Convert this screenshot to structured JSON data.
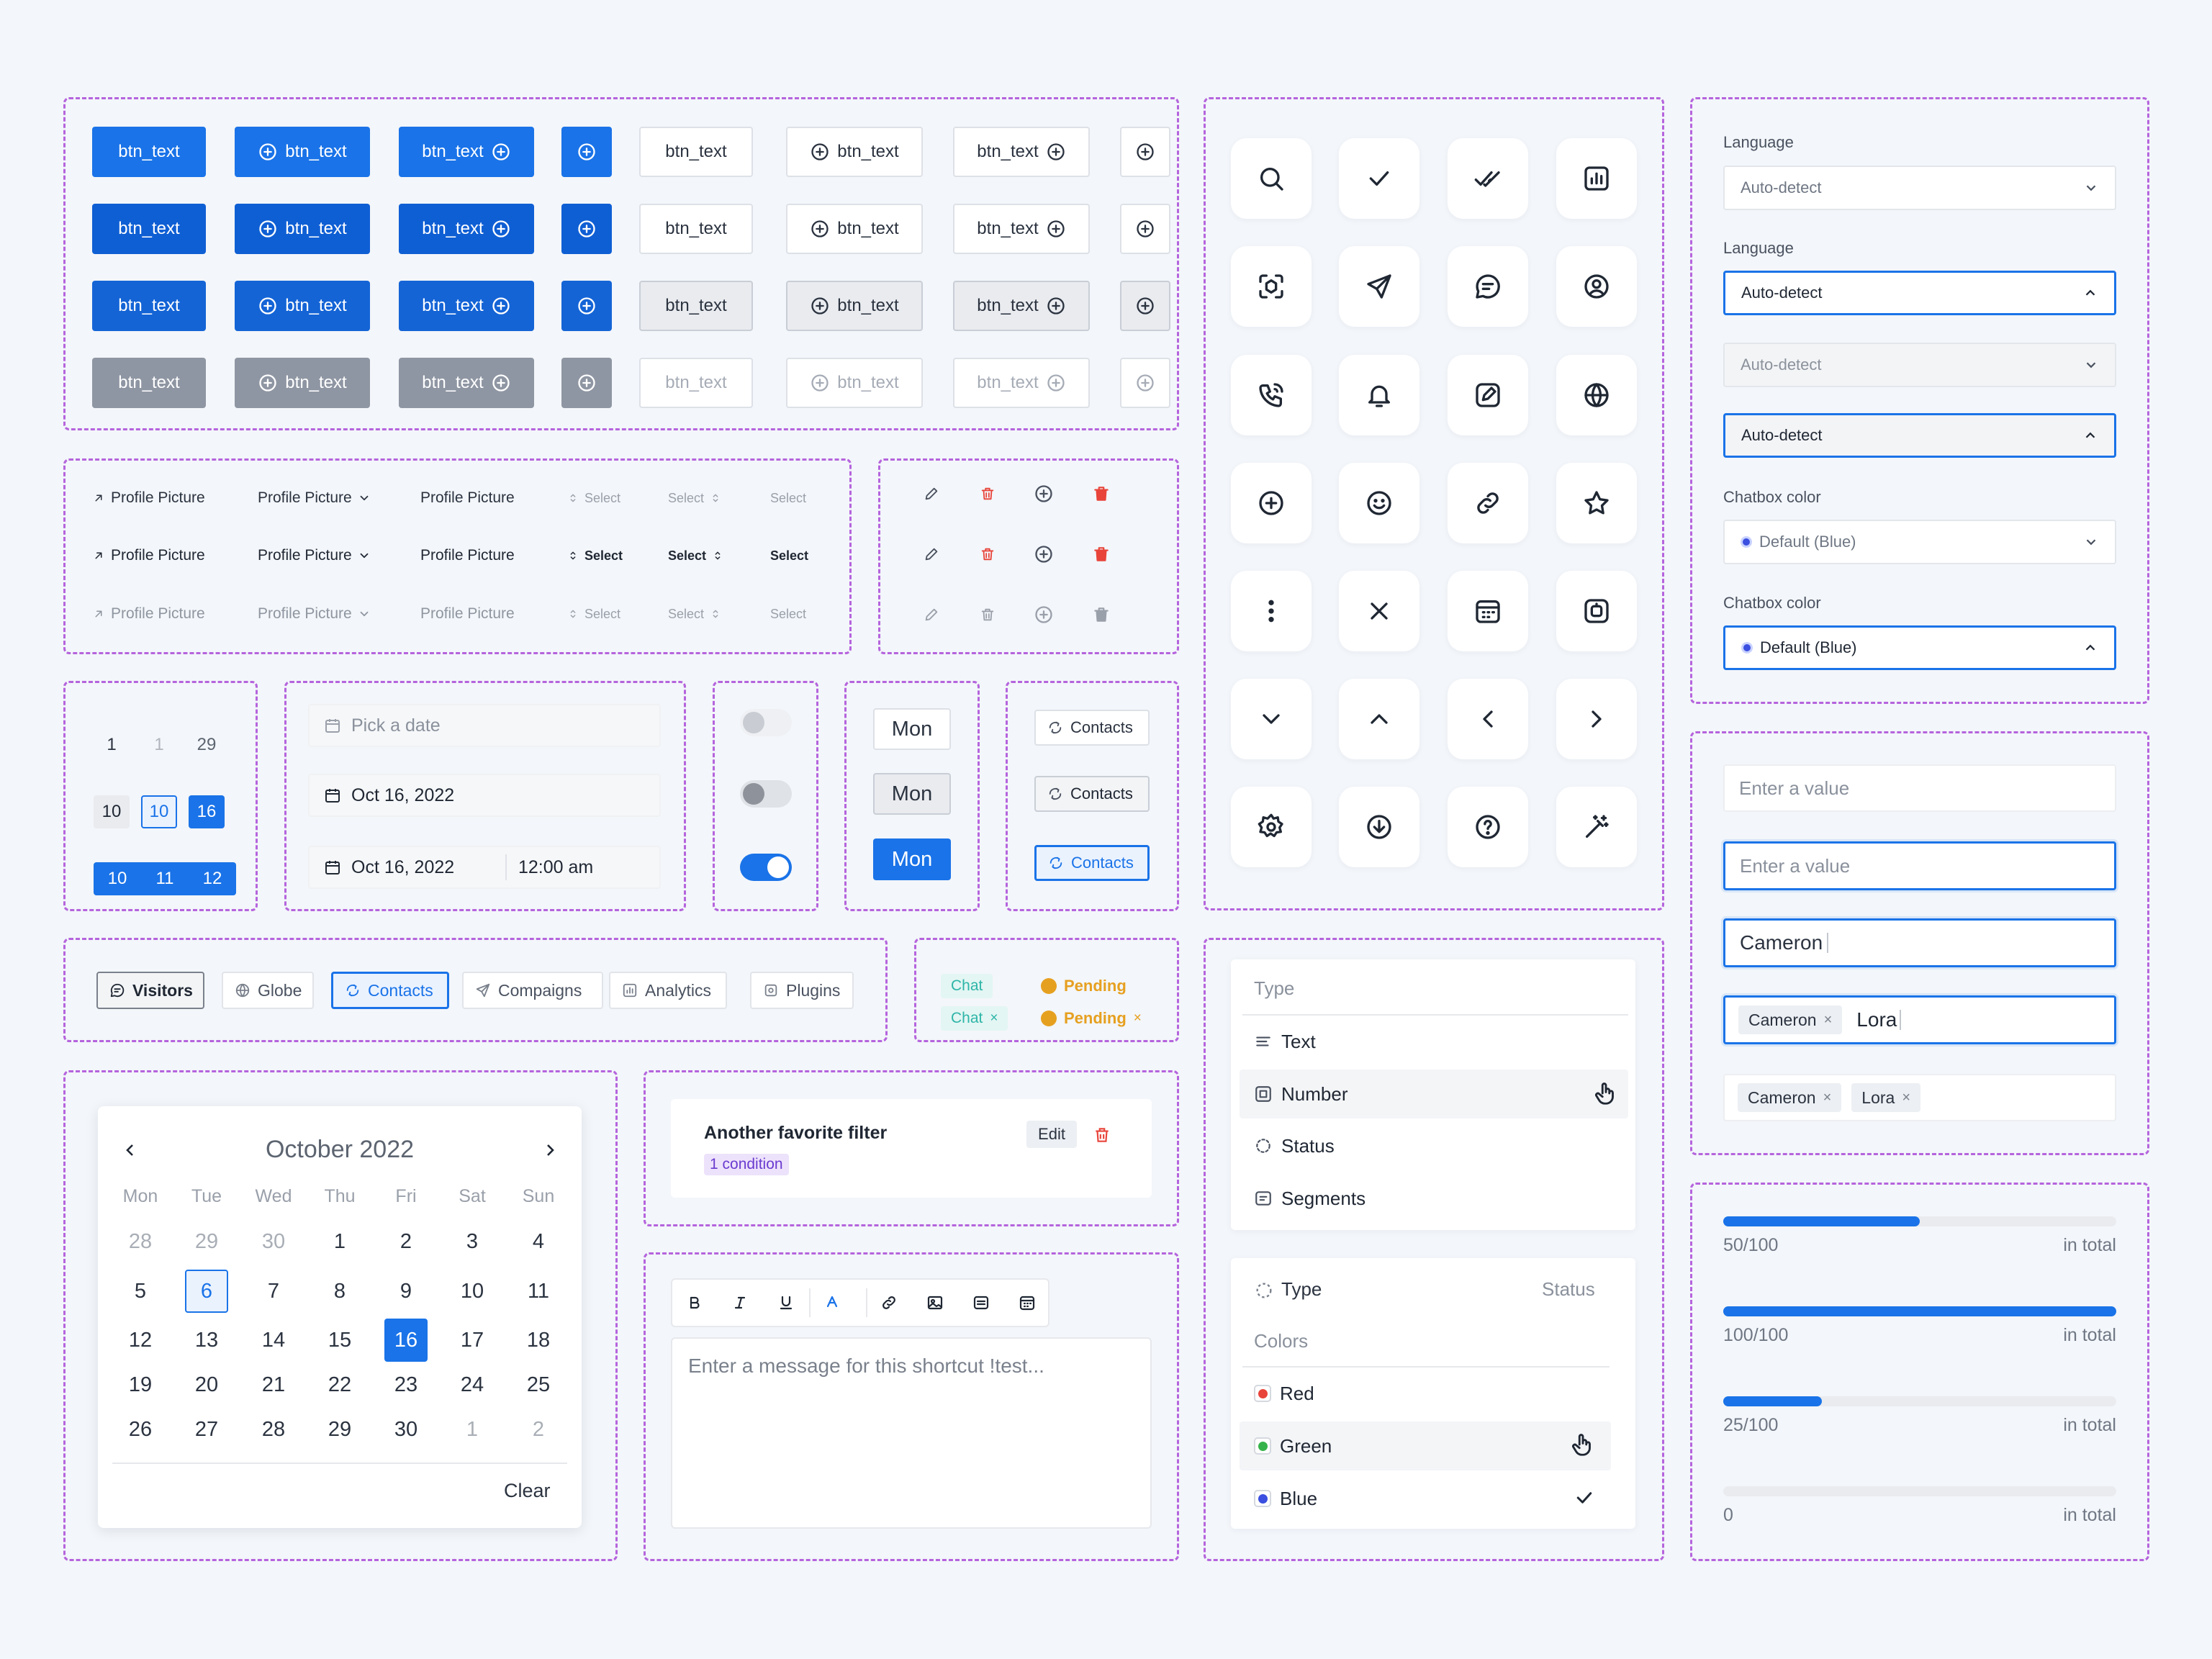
{
  "buttons": {
    "label": "btn_text"
  },
  "dropdowns": {
    "profile": "Profile Picture",
    "select": "Select"
  },
  "numbers": {
    "r1": [
      "1",
      "1",
      "29"
    ],
    "r2": [
      "10",
      "10",
      "16"
    ],
    "r3": [
      "10",
      "11",
      "12"
    ]
  },
  "datepicker": {
    "placeholder": "Pick a date",
    "date": "Oct 16, 2022",
    "time": "12:00 am"
  },
  "segmented": {
    "label": "Mon"
  },
  "contacts_btn": {
    "label": "Contacts"
  },
  "tabs": [
    {
      "label": "Visitors",
      "icon": "chat-icon"
    },
    {
      "label": "Globe",
      "icon": "globe-icon"
    },
    {
      "label": "Contacts",
      "icon": "contacts-icon"
    },
    {
      "label": "Compaigns",
      "icon": "send-icon"
    },
    {
      "label": "Analytics",
      "icon": "analytics-icon"
    },
    {
      "label": "Plugins",
      "icon": "plugins-icon"
    }
  ],
  "tags": {
    "chat": "Chat",
    "pending": "Pending",
    "close": "×"
  },
  "calendar": {
    "month": "October 2022",
    "weekdays": [
      "Mon",
      "Tue",
      "Wed",
      "Thu",
      "Fri",
      "Sat",
      "Sun"
    ],
    "weeks": [
      [
        "28",
        "29",
        "30",
        "1",
        "2",
        "3",
        "4"
      ],
      [
        "5",
        "6",
        "7",
        "8",
        "9",
        "10",
        "11"
      ],
      [
        "12",
        "13",
        "14",
        "15",
        "16",
        "17",
        "18"
      ],
      [
        "19",
        "20",
        "21",
        "22",
        "23",
        "24",
        "25"
      ],
      [
        "26",
        "27",
        "28",
        "29",
        "30",
        "1",
        "2"
      ]
    ],
    "clear": "Clear",
    "today": "6",
    "selected": "16"
  },
  "filter": {
    "title": "Another favorite filter",
    "condition": "1 condition",
    "edit": "Edit"
  },
  "editor": {
    "placeholder": "Enter a message for this shortcut !test..."
  },
  "type_menu": {
    "header": "Type",
    "items": [
      "Text",
      "Number",
      "Status",
      "Segments"
    ]
  },
  "colors_menu": {
    "type": "Type",
    "status": "Status",
    "header": "Colors",
    "items": [
      {
        "label": "Red",
        "color": "#e8443a"
      },
      {
        "label": "Green",
        "color": "#36b24a"
      },
      {
        "label": "Blue",
        "color": "#3b4fe0"
      }
    ]
  },
  "settings": {
    "language_label": "Language",
    "language_value": "Auto-detect",
    "chatbox_label": "Chatbox color",
    "chatbox_value": "Default (Blue)"
  },
  "inputs": {
    "placeholder": "Enter a value",
    "value1": "Cameron",
    "tag1": "Cameron",
    "typed": "Lora",
    "tag2": "Lora"
  },
  "progress": [
    {
      "label": "50/100",
      "fraction": 0.5,
      "suffix": "in total"
    },
    {
      "label": "100/100",
      "fraction": 1.0,
      "suffix": "in total"
    },
    {
      "label": "25/100",
      "fraction": 0.25,
      "suffix": "in total"
    },
    {
      "label": "0",
      "fraction": 0,
      "suffix": "in total"
    }
  ],
  "colors": {
    "primary": "#1a73e8",
    "panel_border": "#b564dd",
    "danger": "#e8443a",
    "pending": "#e6a020",
    "chat": "#2eb5a8"
  }
}
